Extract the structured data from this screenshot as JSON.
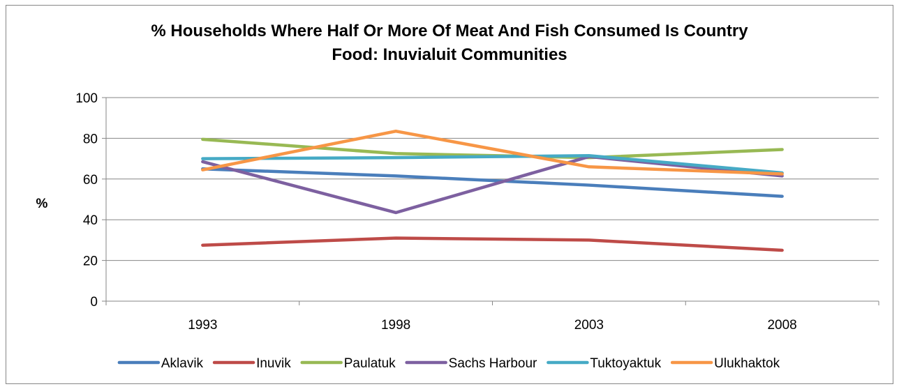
{
  "chart_data": {
    "type": "line",
    "title_lines": [
      "% Households Where Half Or More Of Meat And Fish Consumed Is Country",
      "Food: Inuvialuit Communities"
    ],
    "xlabel": "",
    "ylabel": "%",
    "categories": [
      "1993",
      "1998",
      "2003",
      "2008"
    ],
    "ylim": [
      0,
      100
    ],
    "yticks": [
      0,
      20,
      40,
      60,
      80,
      100
    ],
    "grid": true,
    "legend_position": "bottom",
    "series": [
      {
        "name": "Aklavik",
        "color": "#4a7ebb",
        "values": [
          65,
          61.5,
          57,
          51.5
        ]
      },
      {
        "name": "Inuvik",
        "color": "#be4b48",
        "values": [
          27.5,
          31,
          30,
          25
        ]
      },
      {
        "name": "Paulatuk",
        "color": "#98b954",
        "values": [
          79.5,
          72.5,
          70.5,
          74.5
        ]
      },
      {
        "name": "Sachs Harbour",
        "color": "#7d60a0",
        "values": [
          68.5,
          43.5,
          71,
          61.5
        ]
      },
      {
        "name": "Tuktoyaktuk",
        "color": "#46aac5",
        "values": [
          70,
          70.5,
          71.5,
          63
        ]
      },
      {
        "name": "Ulukhaktok",
        "color": "#f79646",
        "values": [
          64.5,
          83.5,
          66,
          62.5
        ]
      }
    ]
  }
}
